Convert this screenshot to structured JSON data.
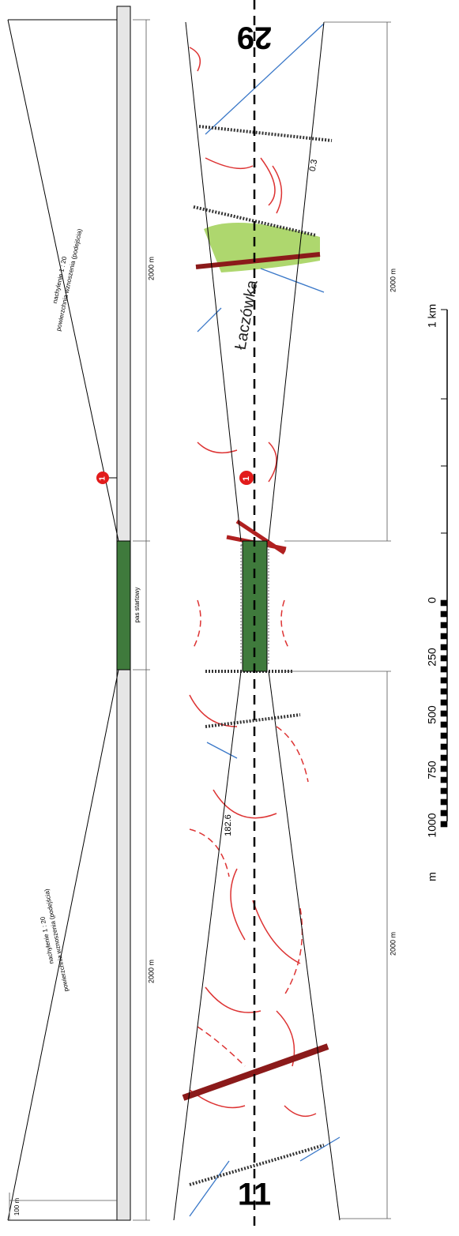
{
  "profile": {
    "slope_label_top": "nachylenie 1 : 20",
    "surface_label_top": "powierzchnia wznoszenia (podejścia)",
    "slope_label_bottom": "nachylenie 1 : 20",
    "surface_label_bottom": "powierzchnia wznoszenia (podejścia)",
    "length_top": "2000 m",
    "length_bottom": "2000 m",
    "runway_label": "pas startowy",
    "height_label": "100 m",
    "marker": "1"
  },
  "map": {
    "runway_top": "29",
    "runway_bottom": "11",
    "length_top": "2000 m",
    "length_bottom": "2000 m",
    "marker": "1",
    "place_name": "Łaczówka",
    "spot_height_1": "0.3",
    "spot_height_2": "182.6"
  },
  "scale_bar": {
    "unit_top": "1 km",
    "labels": [
      "0",
      "250",
      "500",
      "750",
      "1000"
    ],
    "unit_bottom": "m"
  }
}
